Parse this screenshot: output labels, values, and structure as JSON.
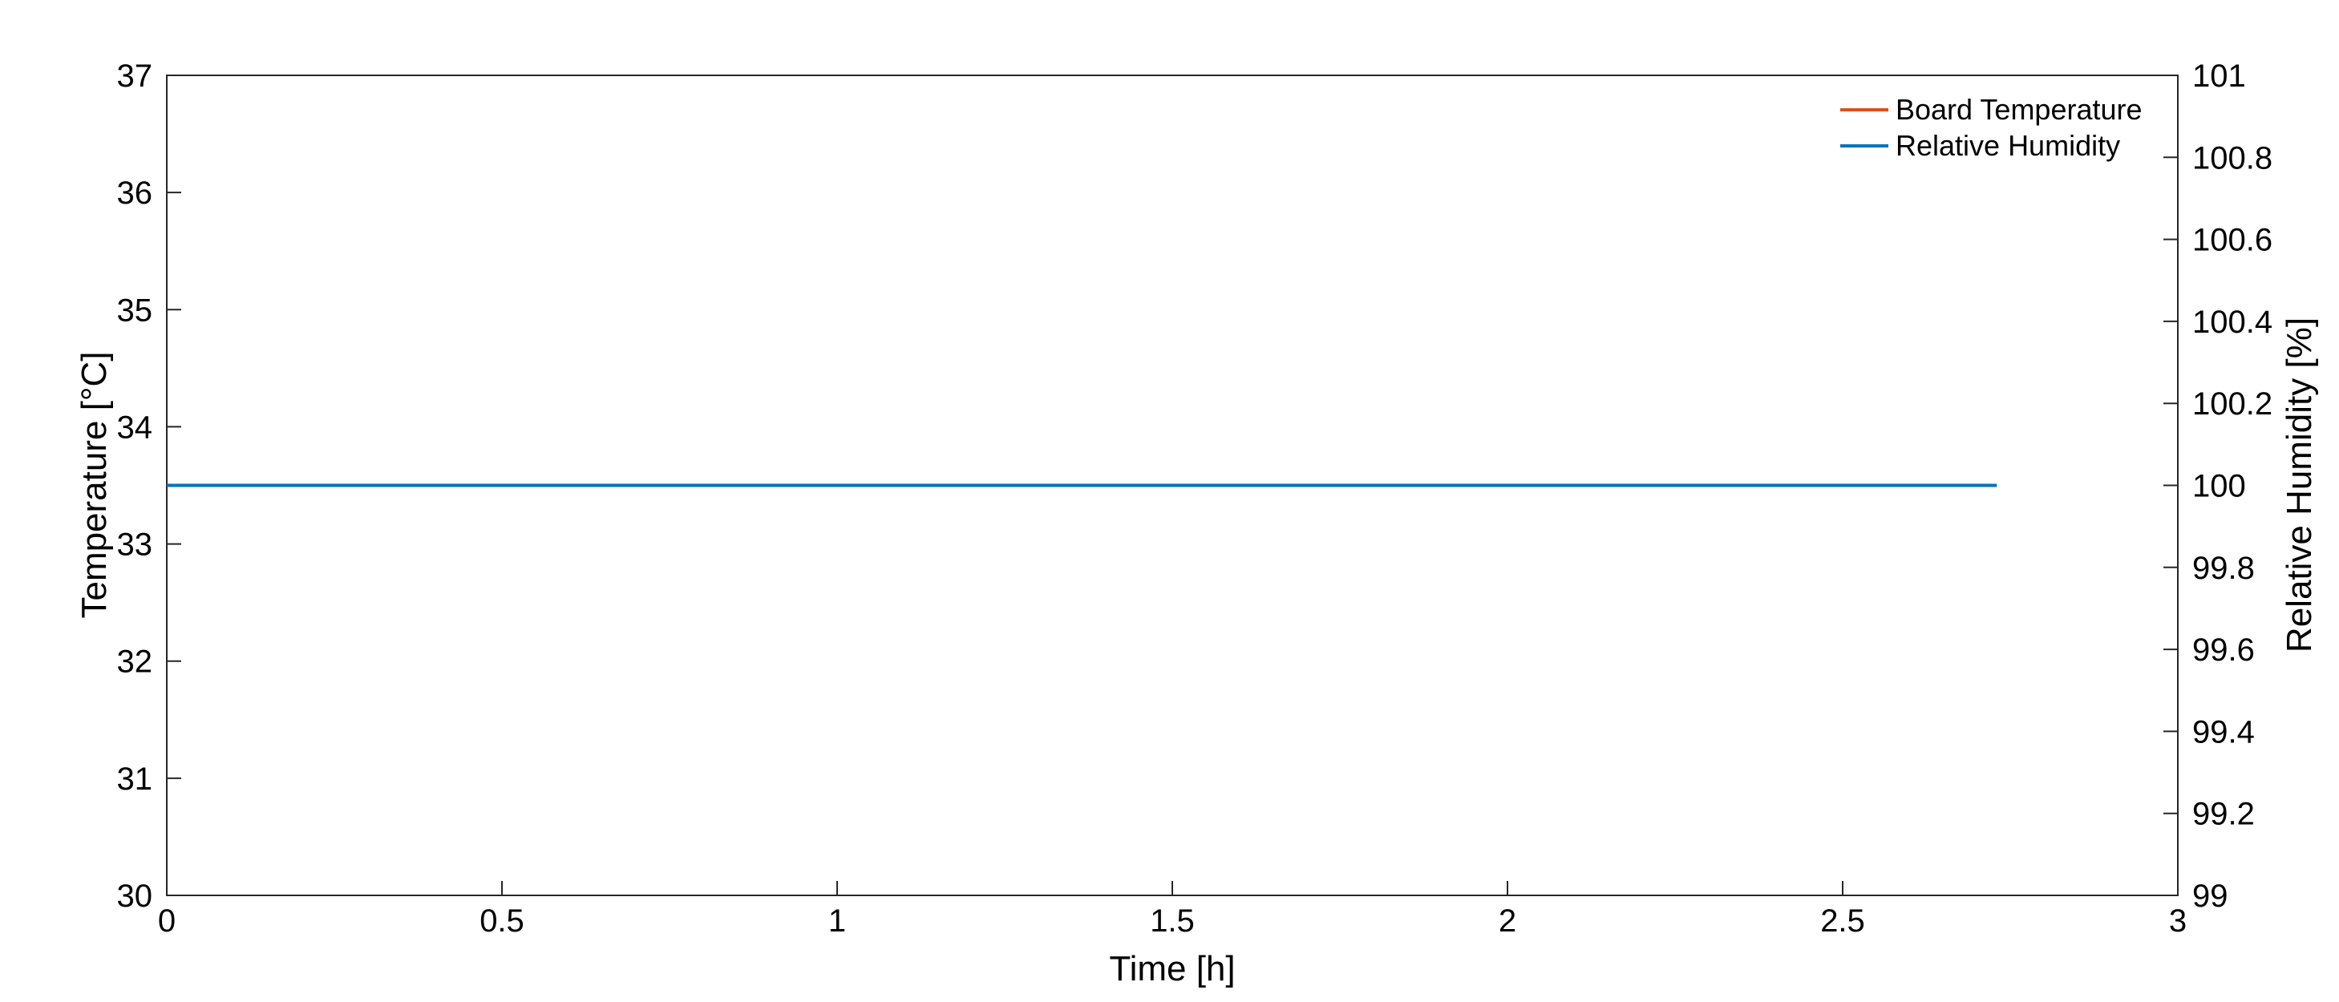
{
  "chart_data": {
    "type": "line",
    "xlabel": "Time [h]",
    "ylabel_left": "Temperature [°C]",
    "ylabel_right": "Relative Humidity [%]",
    "xlim": [
      0,
      3
    ],
    "ylim_left": [
      30,
      37
    ],
    "ylim_right": [
      99,
      101
    ],
    "x_ticks": [
      0,
      0.5,
      1,
      1.5,
      2,
      2.5,
      3
    ],
    "x_tick_labels": [
      "0",
      "0.5",
      "1",
      "1.5",
      "2",
      "2.5",
      "3"
    ],
    "y_left_ticks": [
      30,
      31,
      32,
      33,
      34,
      35,
      36,
      37
    ],
    "y_left_tick_labels": [
      "30",
      "31",
      "32",
      "33",
      "34",
      "35",
      "36",
      "37"
    ],
    "y_right_ticks": [
      99,
      99.2,
      99.4,
      99.6,
      99.8,
      100,
      100.2,
      100.4,
      100.6,
      100.8,
      101
    ],
    "y_right_tick_labels": [
      "99",
      "99.2",
      "99.4",
      "99.6",
      "99.8",
      "100",
      "100.2",
      "100.4",
      "100.6",
      "100.8",
      "101"
    ],
    "grid": false,
    "legend": {
      "placement": "top-right"
    },
    "series": [
      {
        "name": "Board Temperature",
        "axis": "left",
        "color": "#d95319",
        "x": [],
        "y": []
      },
      {
        "name": "Relative Humidity",
        "axis": "right",
        "color": "#0072bd",
        "x": [
          0,
          2.73
        ],
        "y": [
          100,
          100
        ]
      }
    ]
  }
}
